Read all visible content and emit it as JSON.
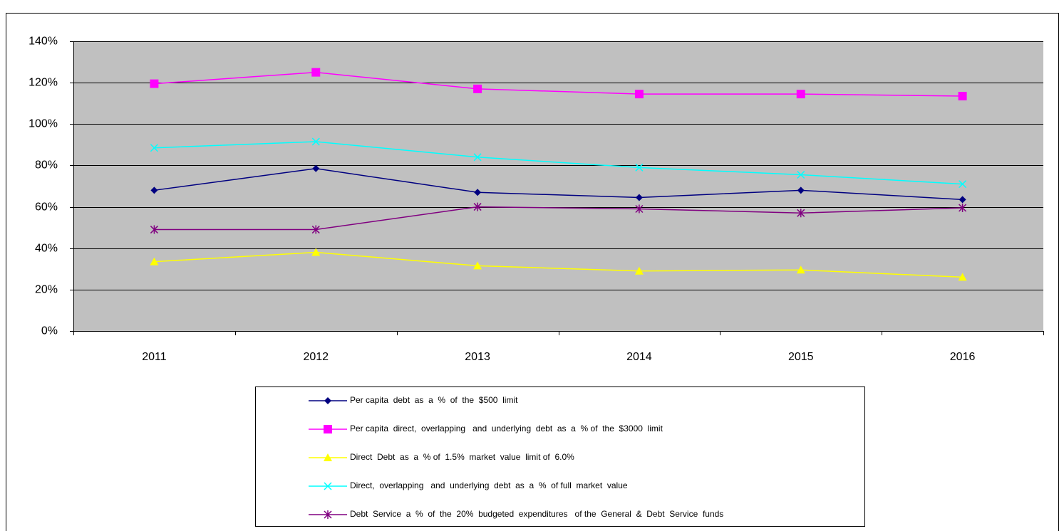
{
  "chart_data": {
    "type": "line",
    "categories": [
      "2011",
      "2012",
      "2013",
      "2014",
      "2015",
      "2016"
    ],
    "ylim": [
      0,
      140
    ],
    "yticks": [
      {
        "value": 0,
        "label": "0%"
      },
      {
        "value": 20,
        "label": "20%"
      },
      {
        "value": 40,
        "label": "40%"
      },
      {
        "value": 60,
        "label": "60%"
      },
      {
        "value": 80,
        "label": "80%"
      },
      {
        "value": 100,
        "label": "100%"
      },
      {
        "value": 120,
        "label": "120%"
      },
      {
        "value": 140,
        "label": "140%"
      }
    ],
    "grid": true,
    "plot_background": "#c0c0c0",
    "series": [
      {
        "name": "Per capita  debt  as  a  %  of  the  $500  limit",
        "color": "#000080",
        "marker": "diamond",
        "values": [
          68,
          78.5,
          67,
          64.5,
          68,
          63.5
        ]
      },
      {
        "name": "Per capita  direct,  overlapping   and  underlying  debt  as  a  % of  the  $3000  limit",
        "color": "#ff00ff",
        "marker": "square",
        "values": [
          119.5,
          125,
          117,
          114.5,
          114.5,
          113.5
        ]
      },
      {
        "name": "Direct  Debt  as  a  % of  1.5%  market  value  limit of  6.0%",
        "color": "#ffff00",
        "marker": "triangle",
        "values": [
          33.5,
          38,
          31.5,
          29,
          29.5,
          26
        ]
      },
      {
        "name": "Direct,  overlapping   and  underlying  debt  as  a  %  of full  market  value",
        "color": "#00ffff",
        "marker": "x",
        "values": [
          88.5,
          91.5,
          84,
          79,
          75.5,
          71
        ]
      },
      {
        "name": "Debt  Service  a  %  of  the  20%  budgeted  expenditures   of the  General  &  Debt  Service  funds",
        "color": "#800080",
        "marker": "star",
        "values": [
          49,
          49,
          60,
          59,
          57,
          59.5
        ]
      }
    ]
  }
}
